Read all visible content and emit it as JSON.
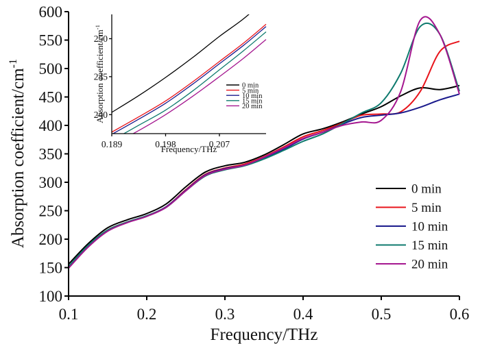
{
  "chart_data": [
    {
      "id": "main",
      "type": "line",
      "title": "",
      "xlabel": "Frequency/THz",
      "ylabel": "Absorption coefficient/cm",
      "ylabel_superscript": "-1",
      "xlim": [
        0.1,
        0.6
      ],
      "ylim": [
        100,
        600
      ],
      "xticks": [
        0.1,
        0.2,
        0.3,
        0.4,
        0.5,
        0.6
      ],
      "xtick_labels": [
        "0.1",
        "0.2",
        "0.3",
        "0.4",
        "0.5",
        "0.6"
      ],
      "yticks": [
        100,
        150,
        200,
        250,
        300,
        350,
        400,
        450,
        500,
        550,
        600
      ],
      "ytick_labels": [
        "100",
        "150",
        "200",
        "250",
        "300",
        "350",
        "400",
        "450",
        "500",
        "550",
        "600"
      ],
      "grid": false,
      "legend_position": "right",
      "x": [
        0.1,
        0.125,
        0.15,
        0.175,
        0.2,
        0.225,
        0.25,
        0.275,
        0.3,
        0.325,
        0.35,
        0.375,
        0.4,
        0.425,
        0.45,
        0.475,
        0.5,
        0.525,
        0.55,
        0.575,
        0.6
      ],
      "series": [
        {
          "name": "0 min",
          "color": "#000000",
          "values": [
            156,
            192,
            220,
            234,
            245,
            262,
            292,
            318,
            329,
            335,
            348,
            366,
            385,
            394,
            406,
            420,
            433,
            452,
            466,
            463,
            470
          ]
        },
        {
          "name": "5 min",
          "color": "#e8141b",
          "values": [
            150,
            188,
            216,
            230,
            241,
            257,
            287,
            314,
            325,
            332,
            345,
            362,
            380,
            391,
            404,
            418,
            420,
            424,
            460,
            530,
            548
          ]
        },
        {
          "name": "10 min",
          "color": "#1a1a8c",
          "values": [
            150,
            187,
            215,
            230,
            241,
            257,
            286,
            313,
            324,
            330,
            343,
            358,
            376,
            388,
            402,
            414,
            418,
            422,
            432,
            445,
            455
          ]
        },
        {
          "name": "15 min",
          "color": "#0e7a6e",
          "values": [
            152,
            189,
            216,
            230,
            241,
            256,
            285,
            311,
            322,
            329,
            341,
            356,
            372,
            385,
            403,
            422,
            440,
            492,
            574,
            560,
            460
          ]
        },
        {
          "name": "20 min",
          "color": "#a4168f",
          "values": [
            149,
            186,
            214,
            229,
            240,
            256,
            285,
            312,
            323,
            330,
            344,
            360,
            377,
            388,
            400,
            406,
            409,
            460,
            585,
            560,
            455
          ]
        }
      ]
    },
    {
      "id": "inset",
      "type": "line",
      "title": "",
      "xlabel": "Frequency/THz",
      "ylabel": "Absorption coefficient/cm",
      "ylabel_superscript": "-1",
      "xlim": [
        0.189,
        0.2148
      ],
      "ylim": [
        237.5,
        253.2
      ],
      "xticks": [
        0.189,
        0.198,
        0.207
      ],
      "xtick_labels": [
        "0.189",
        "0.198",
        "0.207"
      ],
      "yticks": [
        240,
        245,
        250
      ],
      "ytick_labels": [
        "240",
        "245",
        "250"
      ],
      "grid": false,
      "legend_position": "bottom-right",
      "x": [
        0.189,
        0.1935,
        0.198,
        0.2025,
        0.207,
        0.211,
        0.2148
      ],
      "series": [
        {
          "name": "0 min",
          "color": "#000000",
          "values": [
            240.3,
            242.5,
            244.9,
            247.5,
            250.3,
            252.6,
            255.2
          ]
        },
        {
          "name": "5 min",
          "color": "#e8141b",
          "values": [
            237.7,
            239.7,
            241.8,
            244.3,
            247.0,
            249.4,
            251.9
          ]
        },
        {
          "name": "10 min",
          "color": "#1a1a8c",
          "values": [
            237.4,
            239.4,
            241.5,
            244.0,
            246.7,
            249.1,
            251.6
          ]
        },
        {
          "name": "15 min",
          "color": "#0e7a6e",
          "values": [
            236.6,
            238.6,
            240.6,
            243.1,
            245.9,
            248.4,
            250.9
          ]
        },
        {
          "name": "20 min",
          "color": "#a4168f",
          "values": [
            236.0,
            237.9,
            240.0,
            242.4,
            245.0,
            247.4,
            249.9
          ]
        }
      ]
    }
  ]
}
